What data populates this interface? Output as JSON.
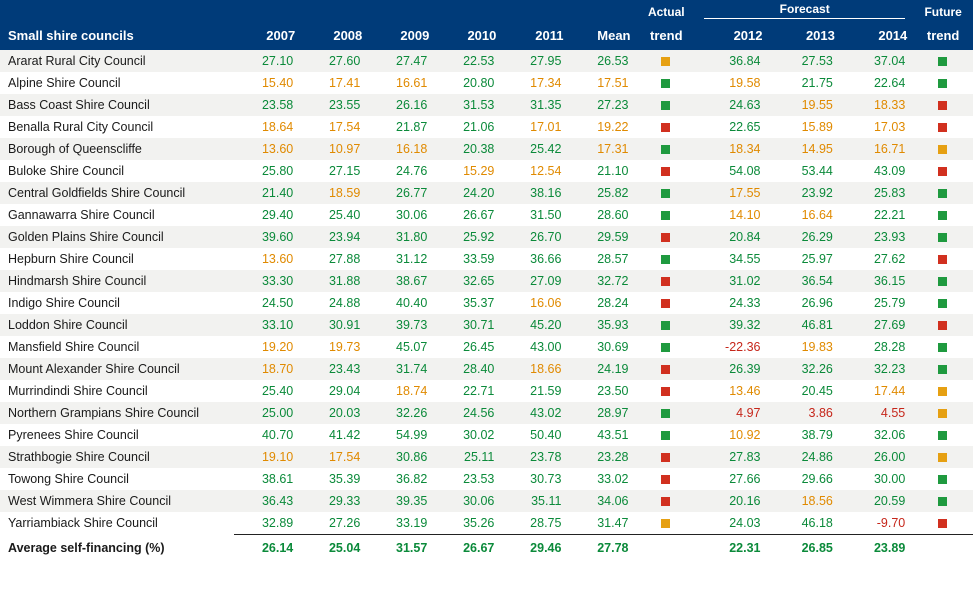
{
  "header": {
    "title": "Small shire councils",
    "years": [
      "2007",
      "2008",
      "2009",
      "2010",
      "2011"
    ],
    "mean": "Mean",
    "actual_trend": "Actual trend",
    "forecast_group": "Forecast",
    "forecast_years": [
      "2012",
      "2013",
      "2014"
    ],
    "future_trend": "Future trend"
  },
  "colors": {
    "header_bg": "#003b79",
    "header_fg": "#ffffff",
    "row_alt": "#f2f2f0",
    "green": "#0b8a3a",
    "orange": "#e08a00",
    "red": "#c6261a",
    "sq_green": "#1f9a3f",
    "sq_orange": "#e6a012",
    "sq_red": "#d1301f"
  },
  "rows": [
    {
      "name": "Ararat Rural City Council",
      "y": [
        [
          "27.10",
          "g"
        ],
        [
          "27.60",
          "g"
        ],
        [
          "27.47",
          "g"
        ],
        [
          "22.53",
          "g"
        ],
        [
          "27.95",
          "g"
        ]
      ],
      "mean": [
        "26.53",
        "g"
      ],
      "actual": "o",
      "fc": [
        [
          "36.84",
          "g"
        ],
        [
          "27.53",
          "g"
        ],
        [
          "37.04",
          "g"
        ]
      ],
      "future": "g"
    },
    {
      "name": "Alpine Shire Council",
      "y": [
        [
          "15.40",
          "o"
        ],
        [
          "17.41",
          "o"
        ],
        [
          "16.61",
          "o"
        ],
        [
          "20.80",
          "g"
        ],
        [
          "17.34",
          "o"
        ]
      ],
      "mean": [
        "17.51",
        "o"
      ],
      "actual": "g",
      "fc": [
        [
          "19.58",
          "o"
        ],
        [
          "21.75",
          "g"
        ],
        [
          "22.64",
          "g"
        ]
      ],
      "future": "g"
    },
    {
      "name": "Bass Coast Shire Council",
      "y": [
        [
          "23.58",
          "g"
        ],
        [
          "23.55",
          "g"
        ],
        [
          "26.16",
          "g"
        ],
        [
          "31.53",
          "g"
        ],
        [
          "31.35",
          "g"
        ]
      ],
      "mean": [
        "27.23",
        "g"
      ],
      "actual": "g",
      "fc": [
        [
          "24.63",
          "g"
        ],
        [
          "19.55",
          "o"
        ],
        [
          "18.33",
          "o"
        ]
      ],
      "future": "r"
    },
    {
      "name": "Benalla Rural City Council",
      "y": [
        [
          "18.64",
          "o"
        ],
        [
          "17.54",
          "o"
        ],
        [
          "21.87",
          "g"
        ],
        [
          "21.06",
          "g"
        ],
        [
          "17.01",
          "o"
        ]
      ],
      "mean": [
        "19.22",
        "o"
      ],
      "actual": "r",
      "fc": [
        [
          "22.65",
          "g"
        ],
        [
          "15.89",
          "o"
        ],
        [
          "17.03",
          "o"
        ]
      ],
      "future": "r"
    },
    {
      "name": "Borough of Queenscliffe",
      "y": [
        [
          "13.60",
          "o"
        ],
        [
          "10.97",
          "o"
        ],
        [
          "16.18",
          "o"
        ],
        [
          "20.38",
          "g"
        ],
        [
          "25.42",
          "g"
        ]
      ],
      "mean": [
        "17.31",
        "o"
      ],
      "actual": "g",
      "fc": [
        [
          "18.34",
          "o"
        ],
        [
          "14.95",
          "o"
        ],
        [
          "16.71",
          "o"
        ]
      ],
      "future": "o"
    },
    {
      "name": "Buloke Shire Council",
      "y": [
        [
          "25.80",
          "g"
        ],
        [
          "27.15",
          "g"
        ],
        [
          "24.76",
          "g"
        ],
        [
          "15.29",
          "o"
        ],
        [
          "12.54",
          "o"
        ]
      ],
      "mean": [
        "21.10",
        "g"
      ],
      "actual": "r",
      "fc": [
        [
          "54.08",
          "g"
        ],
        [
          "53.44",
          "g"
        ],
        [
          "43.09",
          "g"
        ]
      ],
      "future": "r"
    },
    {
      "name": "Central Goldfields Shire Council",
      "y": [
        [
          "21.40",
          "g"
        ],
        [
          "18.59",
          "o"
        ],
        [
          "26.77",
          "g"
        ],
        [
          "24.20",
          "g"
        ],
        [
          "38.16",
          "g"
        ]
      ],
      "mean": [
        "25.82",
        "g"
      ],
      "actual": "g",
      "fc": [
        [
          "17.55",
          "o"
        ],
        [
          "23.92",
          "g"
        ],
        [
          "25.83",
          "g"
        ]
      ],
      "future": "g"
    },
    {
      "name": "Gannawarra Shire Council",
      "y": [
        [
          "29.40",
          "g"
        ],
        [
          "25.40",
          "g"
        ],
        [
          "30.06",
          "g"
        ],
        [
          "26.67",
          "g"
        ],
        [
          "31.50",
          "g"
        ]
      ],
      "mean": [
        "28.60",
        "g"
      ],
      "actual": "g",
      "fc": [
        [
          "14.10",
          "o"
        ],
        [
          "16.64",
          "o"
        ],
        [
          "22.21",
          "g"
        ]
      ],
      "future": "g"
    },
    {
      "name": "Golden Plains Shire Council",
      "y": [
        [
          "39.60",
          "g"
        ],
        [
          "23.94",
          "g"
        ],
        [
          "31.80",
          "g"
        ],
        [
          "25.92",
          "g"
        ],
        [
          "26.70",
          "g"
        ]
      ],
      "mean": [
        "29.59",
        "g"
      ],
      "actual": "r",
      "fc": [
        [
          "20.84",
          "g"
        ],
        [
          "26.29",
          "g"
        ],
        [
          "23.93",
          "g"
        ]
      ],
      "future": "g"
    },
    {
      "name": "Hepburn Shire Council",
      "y": [
        [
          "13.60",
          "o"
        ],
        [
          "27.88",
          "g"
        ],
        [
          "31.12",
          "g"
        ],
        [
          "33.59",
          "g"
        ],
        [
          "36.66",
          "g"
        ]
      ],
      "mean": [
        "28.57",
        "g"
      ],
      "actual": "g",
      "fc": [
        [
          "34.55",
          "g"
        ],
        [
          "25.97",
          "g"
        ],
        [
          "27.62",
          "g"
        ]
      ],
      "future": "r"
    },
    {
      "name": "Hindmarsh Shire Council",
      "y": [
        [
          "33.30",
          "g"
        ],
        [
          "31.88",
          "g"
        ],
        [
          "38.67",
          "g"
        ],
        [
          "32.65",
          "g"
        ],
        [
          "27.09",
          "g"
        ]
      ],
      "mean": [
        "32.72",
        "g"
      ],
      "actual": "r",
      "fc": [
        [
          "31.02",
          "g"
        ],
        [
          "36.54",
          "g"
        ],
        [
          "36.15",
          "g"
        ]
      ],
      "future": "g"
    },
    {
      "name": "Indigo Shire Council",
      "y": [
        [
          "24.50",
          "g"
        ],
        [
          "24.88",
          "g"
        ],
        [
          "40.40",
          "g"
        ],
        [
          "35.37",
          "g"
        ],
        [
          "16.06",
          "o"
        ]
      ],
      "mean": [
        "28.24",
        "g"
      ],
      "actual": "r",
      "fc": [
        [
          "24.33",
          "g"
        ],
        [
          "26.96",
          "g"
        ],
        [
          "25.79",
          "g"
        ]
      ],
      "future": "g"
    },
    {
      "name": "Loddon Shire Council",
      "y": [
        [
          "33.10",
          "g"
        ],
        [
          "30.91",
          "g"
        ],
        [
          "39.73",
          "g"
        ],
        [
          "30.71",
          "g"
        ],
        [
          "45.20",
          "g"
        ]
      ],
      "mean": [
        "35.93",
        "g"
      ],
      "actual": "g",
      "fc": [
        [
          "39.32",
          "g"
        ],
        [
          "46.81",
          "g"
        ],
        [
          "27.69",
          "g"
        ]
      ],
      "future": "r"
    },
    {
      "name": "Mansfield Shire Council",
      "y": [
        [
          "19.20",
          "o"
        ],
        [
          "19.73",
          "o"
        ],
        [
          "45.07",
          "g"
        ],
        [
          "26.45",
          "g"
        ],
        [
          "43.00",
          "g"
        ]
      ],
      "mean": [
        "30.69",
        "g"
      ],
      "actual": "g",
      "fc": [
        [
          "-22.36",
          "r"
        ],
        [
          "19.83",
          "o"
        ],
        [
          "28.28",
          "g"
        ]
      ],
      "future": "g"
    },
    {
      "name": "Mount Alexander Shire Council",
      "y": [
        [
          "18.70",
          "o"
        ],
        [
          "23.43",
          "g"
        ],
        [
          "31.74",
          "g"
        ],
        [
          "28.40",
          "g"
        ],
        [
          "18.66",
          "o"
        ]
      ],
      "mean": [
        "24.19",
        "g"
      ],
      "actual": "r",
      "fc": [
        [
          "26.39",
          "g"
        ],
        [
          "32.26",
          "g"
        ],
        [
          "32.23",
          "g"
        ]
      ],
      "future": "g"
    },
    {
      "name": "Murrindindi Shire Council",
      "y": [
        [
          "25.40",
          "g"
        ],
        [
          "29.04",
          "g"
        ],
        [
          "18.74",
          "o"
        ],
        [
          "22.71",
          "g"
        ],
        [
          "21.59",
          "g"
        ]
      ],
      "mean": [
        "23.50",
        "g"
      ],
      "actual": "r",
      "fc": [
        [
          "13.46",
          "o"
        ],
        [
          "20.45",
          "g"
        ],
        [
          "17.44",
          "o"
        ]
      ],
      "future": "o"
    },
    {
      "name": "Northern Grampians Shire Council",
      "y": [
        [
          "25.00",
          "g"
        ],
        [
          "20.03",
          "g"
        ],
        [
          "32.26",
          "g"
        ],
        [
          "24.56",
          "g"
        ],
        [
          "43.02",
          "g"
        ]
      ],
      "mean": [
        "28.97",
        "g"
      ],
      "actual": "g",
      "fc": [
        [
          "4.97",
          "r"
        ],
        [
          "3.86",
          "r"
        ],
        [
          "4.55",
          "r"
        ]
      ],
      "future": "o"
    },
    {
      "name": "Pyrenees Shire Council",
      "y": [
        [
          "40.70",
          "g"
        ],
        [
          "41.42",
          "g"
        ],
        [
          "54.99",
          "g"
        ],
        [
          "30.02",
          "g"
        ],
        [
          "50.40",
          "g"
        ]
      ],
      "mean": [
        "43.51",
        "g"
      ],
      "actual": "g",
      "fc": [
        [
          "10.92",
          "o"
        ],
        [
          "38.79",
          "g"
        ],
        [
          "32.06",
          "g"
        ]
      ],
      "future": "g"
    },
    {
      "name": "Strathbogie Shire Council",
      "y": [
        [
          "19.10",
          "o"
        ],
        [
          "17.54",
          "o"
        ],
        [
          "30.86",
          "g"
        ],
        [
          "25.11",
          "g"
        ],
        [
          "23.78",
          "g"
        ]
      ],
      "mean": [
        "23.28",
        "g"
      ],
      "actual": "r",
      "fc": [
        [
          "27.83",
          "g"
        ],
        [
          "24.86",
          "g"
        ],
        [
          "26.00",
          "g"
        ]
      ],
      "future": "o"
    },
    {
      "name": "Towong Shire Council",
      "y": [
        [
          "38.61",
          "g"
        ],
        [
          "35.39",
          "g"
        ],
        [
          "36.82",
          "g"
        ],
        [
          "23.53",
          "g"
        ],
        [
          "30.73",
          "g"
        ]
      ],
      "mean": [
        "33.02",
        "g"
      ],
      "actual": "r",
      "fc": [
        [
          "27.66",
          "g"
        ],
        [
          "29.66",
          "g"
        ],
        [
          "30.00",
          "g"
        ]
      ],
      "future": "g"
    },
    {
      "name": "West Wimmera Shire Council",
      "y": [
        [
          "36.43",
          "g"
        ],
        [
          "29.33",
          "g"
        ],
        [
          "39.35",
          "g"
        ],
        [
          "30.06",
          "g"
        ],
        [
          "35.11",
          "g"
        ]
      ],
      "mean": [
        "34.06",
        "g"
      ],
      "actual": "r",
      "fc": [
        [
          "20.16",
          "g"
        ],
        [
          "18.56",
          "o"
        ],
        [
          "20.59",
          "g"
        ]
      ],
      "future": "g"
    },
    {
      "name": "Yarriambiack Shire Council",
      "y": [
        [
          "32.89",
          "g"
        ],
        [
          "27.26",
          "g"
        ],
        [
          "33.19",
          "g"
        ],
        [
          "35.26",
          "g"
        ],
        [
          "28.75",
          "g"
        ]
      ],
      "mean": [
        "31.47",
        "g"
      ],
      "actual": "o",
      "fc": [
        [
          "24.03",
          "g"
        ],
        [
          "46.18",
          "g"
        ],
        [
          "-9.70",
          "r"
        ]
      ],
      "future": "r"
    }
  ],
  "average": {
    "label": "Average self-financing (%)",
    "y": [
      "26.14",
      "25.04",
      "31.57",
      "26.67",
      "29.46"
    ],
    "mean": "27.78",
    "fc": [
      "22.31",
      "26.85",
      "23.89"
    ]
  }
}
